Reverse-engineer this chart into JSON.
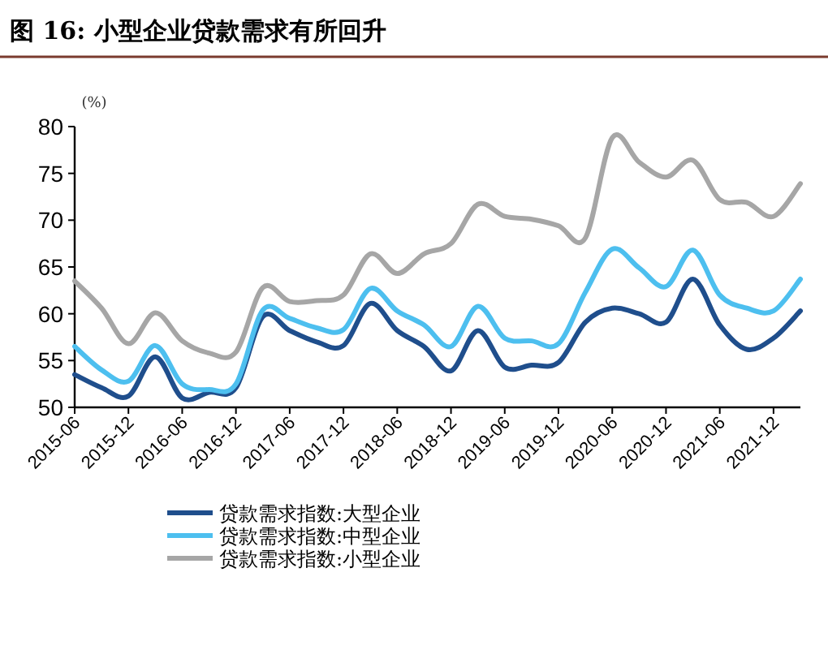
{
  "chart_data": {
    "type": "line",
    "title": "图 16: 小型企业贷款需求有所回升",
    "ylabel": "(%)",
    "categories": [
      "2015-06",
      null,
      "2015-12",
      null,
      "2016-06",
      null,
      "2016-12",
      null,
      "2017-06",
      null,
      "2017-12",
      null,
      "2018-06",
      null,
      "2018-12",
      null,
      "2019-06",
      null,
      "2019-12",
      null,
      "2020-06",
      null,
      "2020-12",
      null,
      "2021-06",
      null,
      "2021-12",
      null
    ],
    "ylim": [
      50,
      80
    ],
    "yticks": [
      50,
      55,
      60,
      65,
      70,
      75,
      80
    ],
    "legend": "bottom",
    "grid": false,
    "marker": "none",
    "line_style": "solid",
    "series": [
      {
        "name": "贷款需求指数:大型企业",
        "color": "#1f4e8c",
        "values": [
          53.5,
          52.1,
          51.2,
          55.4,
          51.0,
          51.6,
          52.1,
          59.7,
          58.2,
          57.0,
          56.6,
          61.1,
          58.2,
          56.5,
          53.9,
          58.2,
          54.3,
          54.5,
          54.8,
          59.1,
          60.6,
          60.0,
          59.1,
          63.7,
          58.8,
          56.2,
          57.4,
          60.3
        ]
      },
      {
        "name": "贷款需求指数:中型企业",
        "color": "#4dbfef",
        "values": [
          56.5,
          54.0,
          52.8,
          56.6,
          52.5,
          51.9,
          52.5,
          60.4,
          59.5,
          58.5,
          58.3,
          62.7,
          60.3,
          58.8,
          56.5,
          60.8,
          57.4,
          57.1,
          56.8,
          62.3,
          66.9,
          64.9,
          62.9,
          66.8,
          62.0,
          60.6,
          60.3,
          63.7
        ]
      },
      {
        "name": "贷款需求指数:小型企业",
        "color": "#a6a6a6",
        "values": [
          63.5,
          60.6,
          56.8,
          60.1,
          57.1,
          55.8,
          55.9,
          62.8,
          61.3,
          61.4,
          62.0,
          66.4,
          64.3,
          66.4,
          67.5,
          71.7,
          70.4,
          70.1,
          69.4,
          68.1,
          78.8,
          76.2,
          74.6,
          76.4,
          72.2,
          71.9,
          70.4,
          73.9
        ]
      }
    ]
  }
}
